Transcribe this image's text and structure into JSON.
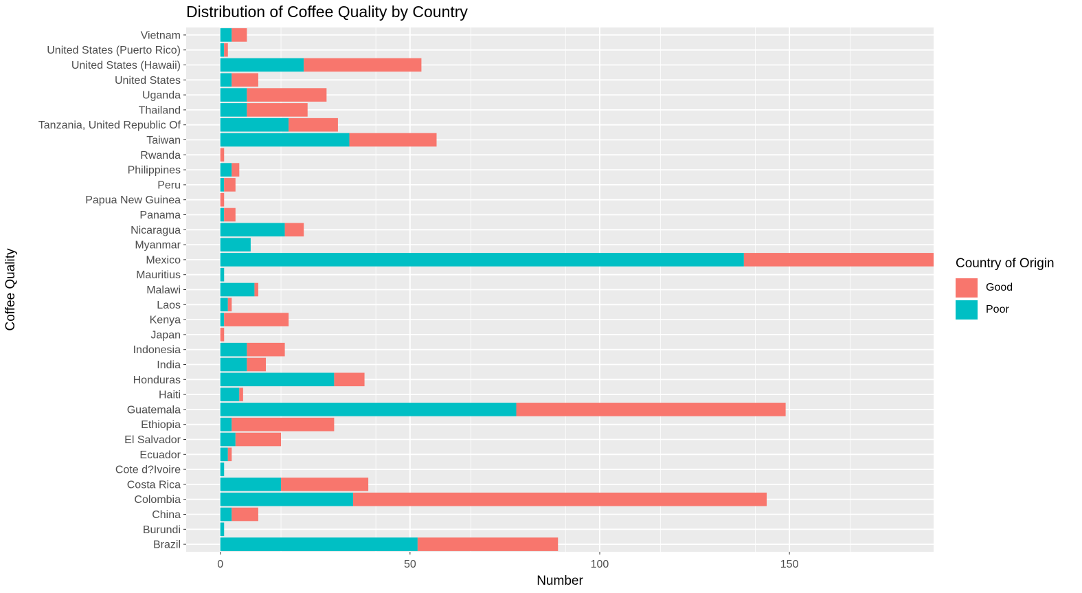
{
  "chart_data": {
    "type": "bar",
    "orientation": "horizontal",
    "stacked": true,
    "title": "Distribution of Coffee Quality by Country",
    "xlabel": "Number",
    "ylabel": "Coffee Quality",
    "xlim": [
      -9,
      188
    ],
    "xticks": [
      0,
      50,
      100,
      150
    ],
    "grid": true,
    "legend": {
      "title": "Country of Origin",
      "position": "right"
    },
    "categories": [
      "Brazil",
      "Burundi",
      "China",
      "Colombia",
      "Costa Rica",
      "Cote d?Ivoire",
      "Ecuador",
      "El Salvador",
      "Ethiopia",
      "Guatemala",
      "Haiti",
      "Honduras",
      "India",
      "Indonesia",
      "Japan",
      "Kenya",
      "Laos",
      "Malawi",
      "Mauritius",
      "Mexico",
      "Myanmar",
      "Nicaragua",
      "Panama",
      "Papua New Guinea",
      "Peru",
      "Philippines",
      "Rwanda",
      "Taiwan",
      "Tanzania, United Republic Of",
      "Thailand",
      "Uganda",
      "United States",
      "United States (Hawaii)",
      "United States (Puerto Rico)",
      "Vietnam"
    ],
    "series": [
      {
        "name": "Good",
        "color": "#F8766D",
        "values": [
          37,
          0,
          7,
          109,
          23,
          0,
          1,
          12,
          27,
          71,
          1,
          8,
          5,
          10,
          1,
          17,
          1,
          1,
          0,
          50,
          0,
          5,
          3,
          1,
          3,
          2,
          1,
          23,
          13,
          16,
          21,
          7,
          31,
          1,
          4
        ]
      },
      {
        "name": "Poor",
        "color": "#00BFC4",
        "values": [
          52,
          1,
          3,
          35,
          16,
          1,
          2,
          4,
          3,
          78,
          5,
          30,
          7,
          7,
          0,
          1,
          2,
          9,
          1,
          138,
          8,
          17,
          1,
          0,
          1,
          3,
          0,
          34,
          18,
          7,
          7,
          3,
          22,
          1,
          3
        ]
      }
    ]
  }
}
